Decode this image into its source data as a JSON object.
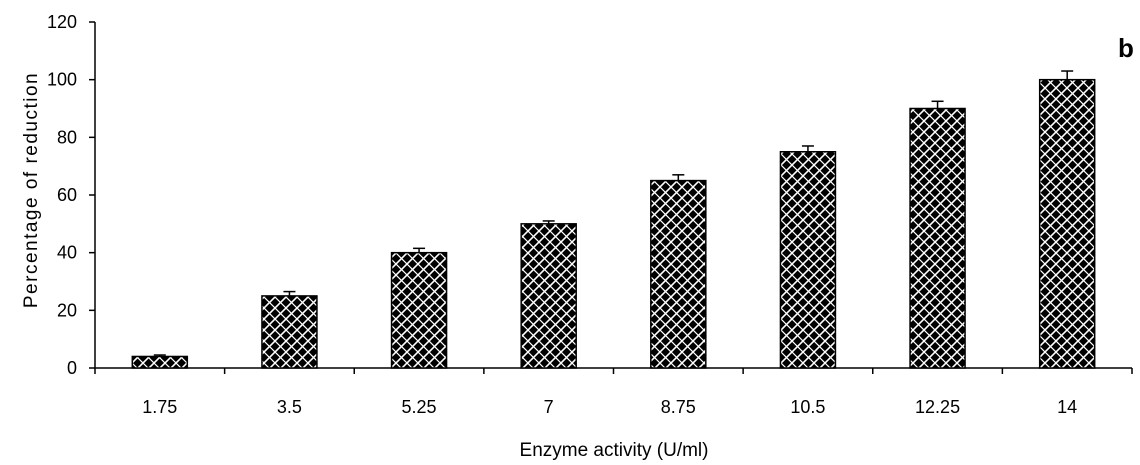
{
  "chart_data": {
    "type": "bar",
    "panel_label": "b",
    "xlabel": "Enzyme activity (U/ml)",
    "ylabel": "Percentage of reduction",
    "categories": [
      "1.75",
      "3.5",
      "5.25",
      "7",
      "8.75",
      "10.5",
      "12.25",
      "14"
    ],
    "values": [
      4,
      25,
      40,
      50,
      65,
      75,
      90,
      100
    ],
    "error": [
      0.5,
      1.5,
      1.5,
      1,
      2,
      2,
      2.5,
      3
    ],
    "ylim": [
      0,
      120
    ],
    "yticks": [
      "0",
      "20",
      "40",
      "60",
      "80",
      "100",
      "120"
    ],
    "grid": false,
    "bar_color": "#000000",
    "bar_pattern": "white diagonal crosshatch"
  }
}
